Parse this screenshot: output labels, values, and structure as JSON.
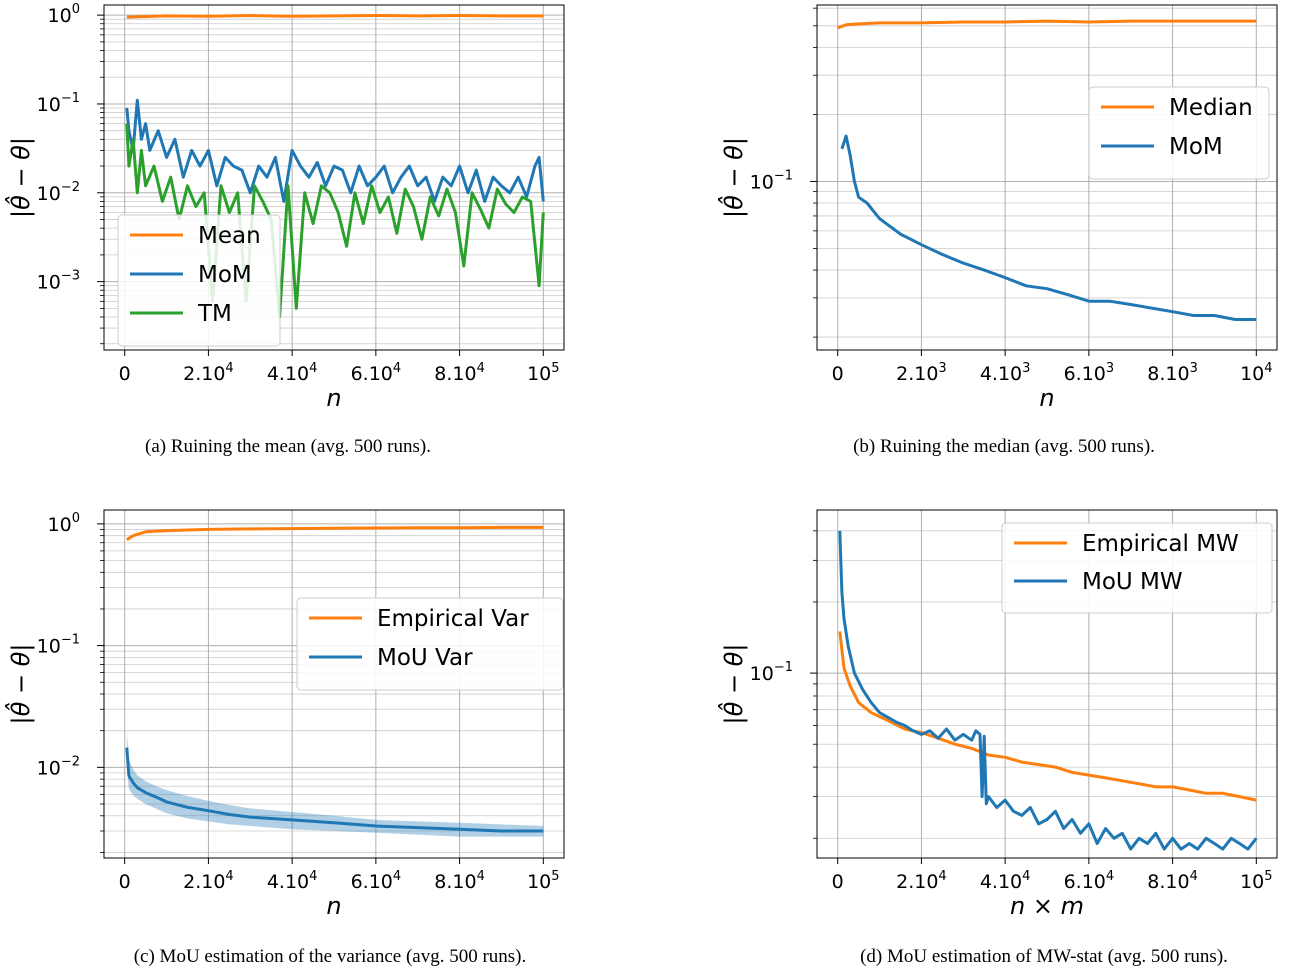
{
  "chart_data": [
    {
      "type": "line",
      "panel": "a",
      "caption": "(a) Ruining the mean (avg. 500 runs).",
      "ylabel": "|θ̂ − θ|",
      "xlabel": "n",
      "yscale": "log",
      "xlim": [
        0,
        100000
      ],
      "ylim": [
        0.00017,
        1.3
      ],
      "xticks": [
        0,
        20000,
        40000,
        60000,
        80000,
        100000
      ],
      "xtick_labels": [
        {
          "base": "0",
          "exp": ""
        },
        {
          "base": "2.10",
          "exp": "4"
        },
        {
          "base": "4.10",
          "exp": "4"
        },
        {
          "base": "6.10",
          "exp": "4"
        },
        {
          "base": "8.10",
          "exp": "4"
        },
        {
          "base": "10",
          "exp": "5"
        }
      ],
      "yticks": [
        0.001,
        0.01,
        0.1,
        1
      ],
      "ytick_labels": [
        {
          "base": "10",
          "exp": "−3"
        },
        {
          "base": "10",
          "exp": "−2"
        },
        {
          "base": "10",
          "exp": "−1"
        },
        {
          "base": "10",
          "exp": "0"
        }
      ],
      "grid": true,
      "legend": "lower-left",
      "series": [
        {
          "name": "Mean",
          "color": "#ff7f0e",
          "x": [
            500,
            10000,
            20000,
            30000,
            40000,
            50000,
            60000,
            70000,
            80000,
            90000,
            100000
          ],
          "y": [
            0.95,
            0.98,
            0.97,
            0.99,
            0.97,
            0.98,
            0.99,
            0.98,
            0.99,
            0.98,
            0.98
          ]
        },
        {
          "name": "MoM",
          "color": "#1f77b4",
          "x": [
            500,
            1000,
            2000,
            3000,
            4000,
            5000,
            6000,
            8000,
            10000,
            12000,
            14000,
            16000,
            18000,
            20000,
            22000,
            24000,
            26000,
            28000,
            30000,
            32000,
            34000,
            36000,
            38000,
            40000,
            42000,
            44000,
            46000,
            48000,
            50000,
            52000,
            54000,
            56000,
            58000,
            60000,
            62000,
            64000,
            66000,
            68000,
            70000,
            72000,
            74000,
            76000,
            78000,
            80000,
            82000,
            84000,
            86000,
            88000,
            90000,
            92000,
            94000,
            96000,
            98000,
            99000,
            100000
          ],
          "y": [
            0.09,
            0.05,
            0.03,
            0.11,
            0.04,
            0.06,
            0.03,
            0.05,
            0.025,
            0.04,
            0.015,
            0.03,
            0.02,
            0.03,
            0.012,
            0.025,
            0.02,
            0.018,
            0.01,
            0.02,
            0.015,
            0.025,
            0.008,
            0.03,
            0.02,
            0.015,
            0.022,
            0.012,
            0.02,
            0.018,
            0.01,
            0.02,
            0.012,
            0.015,
            0.02,
            0.01,
            0.015,
            0.02,
            0.012,
            0.015,
            0.008,
            0.015,
            0.012,
            0.02,
            0.01,
            0.018,
            0.008,
            0.015,
            0.012,
            0.01,
            0.015,
            0.009,
            0.02,
            0.025,
            0.008
          ]
        },
        {
          "name": "TM",
          "color": "#2ca02c",
          "x": [
            500,
            1000,
            2000,
            3000,
            4000,
            5000,
            7000,
            9000,
            11000,
            13000,
            15000,
            17000,
            19000,
            21000,
            23000,
            25000,
            27000,
            29000,
            31000,
            33000,
            35000,
            37000,
            39000,
            41000,
            43000,
            45000,
            47000,
            49000,
            51000,
            53000,
            55000,
            57000,
            59000,
            61000,
            63000,
            65000,
            67000,
            69000,
            71000,
            73000,
            75000,
            77000,
            79000,
            81000,
            83000,
            85000,
            87000,
            89000,
            91000,
            93000,
            95000,
            97000,
            99000,
            100000
          ],
          "y": [
            0.06,
            0.02,
            0.04,
            0.01,
            0.03,
            0.012,
            0.02,
            0.008,
            0.015,
            0.005,
            0.012,
            0.007,
            0.01,
            0.0006,
            0.012,
            0.006,
            0.01,
            0.0006,
            0.012,
            0.008,
            0.005,
            0.0004,
            0.012,
            0.0005,
            0.01,
            0.0045,
            0.012,
            0.01,
            0.006,
            0.0025,
            0.01,
            0.0045,
            0.012,
            0.006,
            0.009,
            0.0035,
            0.011,
            0.007,
            0.003,
            0.009,
            0.0055,
            0.011,
            0.006,
            0.0015,
            0.01,
            0.0065,
            0.004,
            0.011,
            0.0075,
            0.006,
            0.009,
            0.008,
            0.0009,
            0.006
          ]
        }
      ]
    },
    {
      "type": "line",
      "panel": "b",
      "caption": "(b) Ruining the median (avg. 500 runs).",
      "ylabel": "|θ̂ − θ|",
      "xlabel": "n",
      "yscale": "log",
      "xlim": [
        0,
        10000
      ],
      "ylim": [
        0.0175,
        0.62
      ],
      "xticks": [
        0,
        2000,
        4000,
        6000,
        8000,
        10000
      ],
      "xtick_labels": [
        {
          "base": "0",
          "exp": ""
        },
        {
          "base": "2.10",
          "exp": "3"
        },
        {
          "base": "4.10",
          "exp": "3"
        },
        {
          "base": "6.10",
          "exp": "3"
        },
        {
          "base": "8.10",
          "exp": "3"
        },
        {
          "base": "10",
          "exp": "4"
        }
      ],
      "yticks": [
        0.1
      ],
      "ytick_labels": [
        {
          "base": "10",
          "exp": "−1"
        }
      ],
      "grid": true,
      "legend": "upper-right",
      "series": [
        {
          "name": "Median",
          "color": "#ff7f0e",
          "x": [
            0,
            200,
            500,
            1000,
            2000,
            3000,
            4000,
            5000,
            6000,
            7000,
            8000,
            9000,
            10000
          ],
          "y": [
            0.49,
            0.505,
            0.51,
            0.515,
            0.515,
            0.52,
            0.52,
            0.525,
            0.52,
            0.525,
            0.525,
            0.525,
            0.525
          ]
        },
        {
          "name": "MoM",
          "color": "#1f77b4",
          "x": [
            100,
            200,
            300,
            400,
            500,
            700,
            1000,
            1500,
            2000,
            2500,
            3000,
            3500,
            4000,
            4500,
            5000,
            5500,
            6000,
            6500,
            7000,
            7500,
            8000,
            8500,
            9000,
            9500,
            10000
          ],
          "y": [
            0.14,
            0.16,
            0.13,
            0.1,
            0.085,
            0.08,
            0.068,
            0.058,
            0.052,
            0.047,
            0.043,
            0.04,
            0.037,
            0.034,
            0.033,
            0.031,
            0.029,
            0.029,
            0.028,
            0.027,
            0.026,
            0.025,
            0.025,
            0.024,
            0.024
          ]
        }
      ]
    },
    {
      "type": "line",
      "panel": "c",
      "caption": "(c) MoU estimation of the variance (avg. 500 runs).",
      "ylabel": "|θ̂ − θ|",
      "xlabel": "n",
      "yscale": "log",
      "xlim": [
        0,
        100000
      ],
      "ylim": [
        0.0018,
        1.3
      ],
      "xticks": [
        0,
        20000,
        40000,
        60000,
        80000,
        100000
      ],
      "xtick_labels": [
        {
          "base": "0",
          "exp": ""
        },
        {
          "base": "2.10",
          "exp": "4"
        },
        {
          "base": "4.10",
          "exp": "4"
        },
        {
          "base": "6.10",
          "exp": "4"
        },
        {
          "base": "8.10",
          "exp": "4"
        },
        {
          "base": "10",
          "exp": "5"
        }
      ],
      "yticks": [
        0.01,
        0.1,
        1
      ],
      "ytick_labels": [
        {
          "base": "10",
          "exp": "−2"
        },
        {
          "base": "10",
          "exp": "−1"
        },
        {
          "base": "10",
          "exp": "0"
        }
      ],
      "grid": true,
      "legend": "center-right",
      "series": [
        {
          "name": "Empirical Var",
          "color": "#ff7f0e",
          "x": [
            500,
            2000,
            5000,
            10000,
            20000,
            30000,
            40000,
            50000,
            60000,
            70000,
            80000,
            90000,
            100000
          ],
          "y": [
            0.74,
            0.8,
            0.86,
            0.88,
            0.9,
            0.91,
            0.915,
            0.92,
            0.925,
            0.93,
            0.93,
            0.935,
            0.935
          ]
        },
        {
          "name": "MoU Var",
          "color": "#1f77b4",
          "x": [
            500,
            1000,
            2000,
            3000,
            5000,
            8000,
            10000,
            15000,
            20000,
            25000,
            30000,
            40000,
            50000,
            60000,
            70000,
            80000,
            90000,
            100000
          ],
          "y": [
            0.0145,
            0.0085,
            0.0075,
            0.0068,
            0.0062,
            0.0056,
            0.0052,
            0.0047,
            0.0044,
            0.0041,
            0.0039,
            0.0037,
            0.0035,
            0.0033,
            0.0032,
            0.0031,
            0.003,
            0.003
          ],
          "band_low": [
            0.0105,
            0.0066,
            0.0059,
            0.0055,
            0.005,
            0.0045,
            0.0042,
            0.0038,
            0.0036,
            0.0034,
            0.0033,
            0.0031,
            0.003,
            0.0029,
            0.0028,
            0.0027,
            0.0027,
            0.0027
          ],
          "band_high": [
            0.02,
            0.0115,
            0.0097,
            0.0086,
            0.0077,
            0.0069,
            0.0065,
            0.0058,
            0.0053,
            0.0049,
            0.0046,
            0.0043,
            0.004,
            0.0037,
            0.0036,
            0.0035,
            0.0034,
            0.0033
          ]
        }
      ]
    },
    {
      "type": "line",
      "panel": "d",
      "caption": "(d) MoU estimation of MW-stat (avg. 500 runs).",
      "ylabel": "|θ̂ − θ|",
      "xlabel": "n × m",
      "yscale": "log",
      "xlim": [
        0,
        100000
      ],
      "ylim": [
        0.0165,
        0.49
      ],
      "xticks": [
        0,
        20000,
        40000,
        60000,
        80000,
        100000
      ],
      "xtick_labels": [
        {
          "base": "0",
          "exp": ""
        },
        {
          "base": "2.10",
          "exp": "4"
        },
        {
          "base": "4.10",
          "exp": "4"
        },
        {
          "base": "6.10",
          "exp": "4"
        },
        {
          "base": "8.10",
          "exp": "4"
        },
        {
          "base": "10",
          "exp": "5"
        }
      ],
      "yticks": [
        0.1
      ],
      "ytick_labels": [
        {
          "base": "10",
          "exp": "−1"
        }
      ],
      "grid": true,
      "legend": "upper-right",
      "series": [
        {
          "name": "Empirical MW",
          "color": "#ff7f0e",
          "x": [
            500,
            1500,
            3000,
            5000,
            8000,
            12000,
            16000,
            20000,
            24000,
            28000,
            32000,
            36000,
            40000,
            44000,
            48000,
            52000,
            56000,
            60000,
            64000,
            68000,
            72000,
            76000,
            80000,
            84000,
            88000,
            92000,
            96000,
            100000
          ],
          "y": [
            0.15,
            0.105,
            0.088,
            0.075,
            0.068,
            0.063,
            0.058,
            0.056,
            0.053,
            0.05,
            0.048,
            0.045,
            0.044,
            0.042,
            0.041,
            0.04,
            0.038,
            0.037,
            0.036,
            0.035,
            0.034,
            0.033,
            0.033,
            0.032,
            0.031,
            0.031,
            0.03,
            0.029
          ]
        },
        {
          "name": "MoU MW",
          "color": "#1f77b4",
          "x": [
            500,
            1000,
            1500,
            2500,
            4000,
            6000,
            8000,
            10000,
            12000,
            14000,
            16000,
            18000,
            20000,
            22000,
            24000,
            26000,
            28000,
            30000,
            32000,
            33000,
            34000,
            34500,
            35000,
            35500,
            36000,
            38000,
            40000,
            42000,
            44000,
            46000,
            48000,
            50000,
            52000,
            54000,
            56000,
            58000,
            60000,
            62000,
            64000,
            66000,
            68000,
            70000,
            72000,
            74000,
            76000,
            78000,
            80000,
            82000,
            84000,
            86000,
            88000,
            90000,
            92000,
            94000,
            96000,
            98000,
            100000
          ],
          "y": [
            0.4,
            0.22,
            0.17,
            0.13,
            0.1,
            0.085,
            0.075,
            0.068,
            0.065,
            0.062,
            0.06,
            0.057,
            0.055,
            0.057,
            0.053,
            0.058,
            0.052,
            0.055,
            0.052,
            0.057,
            0.055,
            0.03,
            0.054,
            0.028,
            0.03,
            0.027,
            0.029,
            0.026,
            0.025,
            0.027,
            0.023,
            0.024,
            0.026,
            0.022,
            0.024,
            0.021,
            0.023,
            0.019,
            0.022,
            0.02,
            0.021,
            0.018,
            0.02,
            0.019,
            0.021,
            0.018,
            0.02,
            0.018,
            0.019,
            0.018,
            0.02,
            0.019,
            0.018,
            0.02,
            0.019,
            0.018,
            0.02
          ]
        }
      ]
    }
  ]
}
